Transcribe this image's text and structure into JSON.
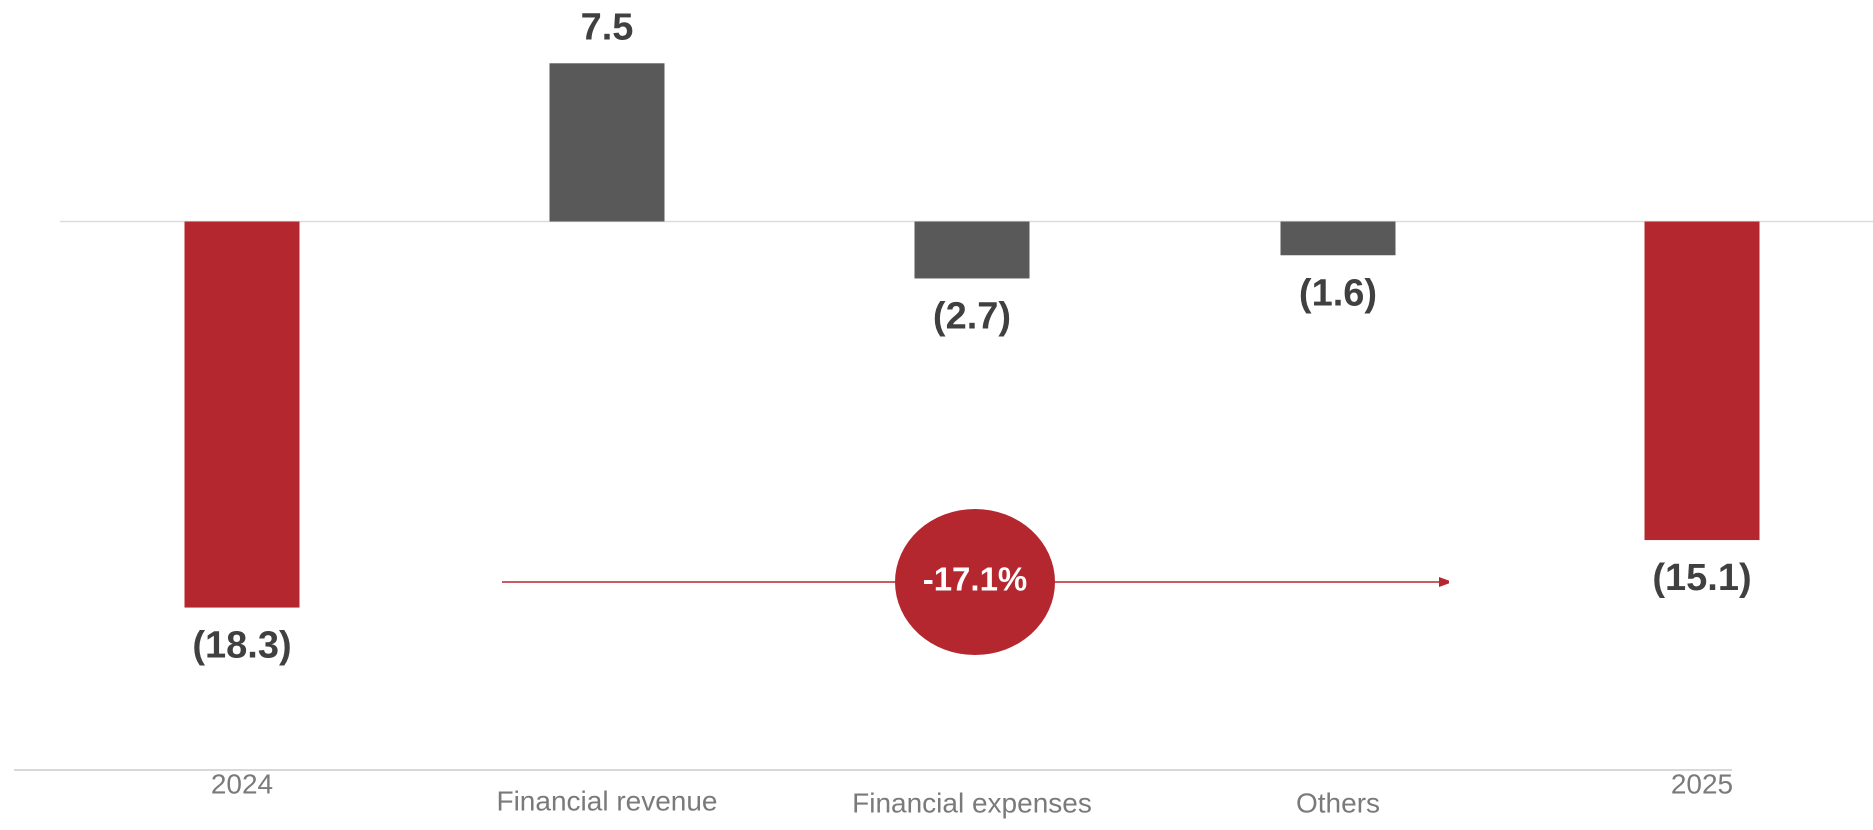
{
  "chart_data": {
    "type": "bar",
    "categories": [
      "2024",
      "Financial revenue",
      "Financial expenses",
      "Others",
      "2025"
    ],
    "values": [
      -18.3,
      7.5,
      -2.7,
      -1.6,
      -15.1
    ],
    "value_labels": [
      "(18.3)",
      "7.5",
      "(2.7)",
      "(1.6)",
      "(15.1)"
    ],
    "colors": [
      "#b5272f",
      "#595959",
      "#595959",
      "#595959",
      "#b5272f"
    ],
    "ylim": [
      -26,
      10.5
    ],
    "annotation": "-17.1%",
    "annotation_color": "#b5272f"
  }
}
